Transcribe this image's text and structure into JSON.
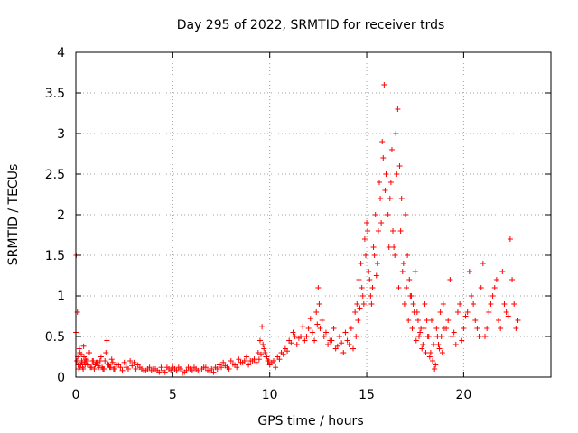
{
  "chart_data": {
    "type": "scatter",
    "title": "Day 295 of 2022, SRMTID for receiver trds",
    "xlabel": "GPS time / hours",
    "ylabel": "SRMTID / TECUs",
    "xlim": [
      0,
      24.5
    ],
    "ylim": [
      0,
      4
    ],
    "xticks": [
      0,
      5,
      10,
      15,
      20
    ],
    "yticks": [
      0,
      0.5,
      1,
      1.5,
      2,
      2.5,
      3,
      3.5,
      4
    ],
    "xtick_labels": [
      "0",
      "5",
      "10",
      "15",
      "20"
    ],
    "ytick_labels": [
      "0",
      "0.5",
      "1",
      "1.5",
      "2",
      "2.5",
      "3",
      "3.5",
      "4"
    ],
    "grid": true,
    "marker": "+",
    "color": "#ff0000",
    "series": [
      {
        "name": "trds",
        "x": [
          0.0,
          0.05,
          0.1,
          0.15,
          0.2,
          0.25,
          0.3,
          0.35,
          0.4,
          0.45,
          0.5,
          0.6,
          0.7,
          0.8,
          0.9,
          1.0,
          1.1,
          1.2,
          1.3,
          1.4,
          1.5,
          1.6,
          1.7,
          1.8,
          1.9,
          2.0,
          2.2,
          2.4,
          2.6,
          2.8,
          3.0,
          3.2,
          3.4,
          3.6,
          3.8,
          4.0,
          4.2,
          4.4,
          4.6,
          4.8,
          5.0,
          5.2,
          5.4,
          5.6,
          5.8,
          6.0,
          6.2,
          6.4,
          6.6,
          6.8,
          7.0,
          7.2,
          7.4,
          7.6,
          7.8,
          8.0,
          8.2,
          8.4,
          8.6,
          8.8,
          9.0,
          9.2,
          9.4,
          9.5,
          9.6,
          9.7,
          9.8,
          9.9,
          10.0,
          10.2,
          10.4,
          10.6,
          10.8,
          11.0,
          11.2,
          11.4,
          11.6,
          11.8,
          12.0,
          12.2,
          12.4,
          12.5,
          12.6,
          12.8,
          13.0,
          13.2,
          13.4,
          13.6,
          13.8,
          14.0,
          14.2,
          14.4,
          14.5,
          14.6,
          14.7,
          14.8,
          14.9,
          15.0,
          15.1,
          15.2,
          15.3,
          15.4,
          15.5,
          15.6,
          15.7,
          15.8,
          15.9,
          16.0,
          16.1,
          16.2,
          16.3,
          16.4,
          16.5,
          16.6,
          16.7,
          16.8,
          16.9,
          17.0,
          17.1,
          17.2,
          17.3,
          17.4,
          17.5,
          17.6,
          17.7,
          17.8,
          17.9,
          18.0,
          18.1,
          18.2,
          18.3,
          18.4,
          18.5,
          18.6,
          18.7,
          18.8,
          18.9,
          19.0,
          19.2,
          19.4,
          19.6,
          19.8,
          20.0,
          20.2,
          20.4,
          20.6,
          20.8,
          21.0,
          21.2,
          21.4,
          21.6,
          21.8,
          22.0,
          22.2,
          22.4,
          22.6,
          22.8,
          0.02,
          0.08,
          0.12,
          0.18,
          0.22,
          0.28,
          0.32,
          0.38,
          0.42,
          0.48,
          0.55,
          0.65,
          0.75,
          0.85,
          0.95,
          1.05,
          1.15,
          1.25,
          1.35,
          1.45,
          1.55,
          1.65,
          1.75,
          1.85,
          1.95,
          2.1,
          2.3,
          2.5,
          2.7,
          2.9,
          3.1,
          3.3,
          3.5,
          3.7,
          3.9,
          4.1,
          4.3,
          4.5,
          4.7,
          4.9,
          5.1,
          5.3,
          5.5,
          5.7,
          5.9,
          6.1,
          6.3,
          6.5,
          6.7,
          6.9,
          7.1,
          7.3,
          7.5,
          7.7,
          7.9,
          8.1,
          8.3,
          8.5,
          8.7,
          8.9,
          9.1,
          9.3,
          9.45,
          9.55,
          9.65,
          9.75,
          9.85,
          9.95,
          10.1,
          10.3,
          10.5,
          10.7,
          10.9,
          11.1,
          11.3,
          11.5,
          11.7,
          11.9,
          12.1,
          12.3,
          12.45,
          12.55,
          12.7,
          12.9,
          13.1,
          13.3,
          13.5,
          13.7,
          13.9,
          14.1,
          14.3,
          14.45,
          14.55,
          14.65,
          14.75,
          14.85,
          14.95,
          15.05,
          15.15,
          15.25,
          15.35,
          15.45,
          15.55,
          15.65,
          15.75,
          15.85,
          15.95,
          16.05,
          16.15,
          16.25,
          16.35,
          16.45,
          16.55,
          16.65,
          16.75,
          16.85,
          16.95,
          17.05,
          17.15,
          17.25,
          17.35,
          17.45,
          17.55,
          17.65,
          17.75,
          17.85,
          17.95,
          18.05,
          18.15,
          18.25,
          18.35,
          18.45,
          18.55,
          18.65,
          18.75,
          18.85,
          18.95,
          19.1,
          19.3,
          19.5,
          19.7,
          19.9,
          20.1,
          20.3,
          20.5,
          20.7,
          20.9,
          21.1,
          21.3,
          21.5,
          21.7,
          21.9,
          22.1,
          22.3,
          22.5,
          22.7
        ],
        "y": [
          0.55,
          0.2,
          0.25,
          0.1,
          0.3,
          0.15,
          0.2,
          0.12,
          0.38,
          0.18,
          0.22,
          0.15,
          0.3,
          0.12,
          0.2,
          0.15,
          0.18,
          0.12,
          0.25,
          0.1,
          0.2,
          0.45,
          0.15,
          0.12,
          0.18,
          0.1,
          0.15,
          0.08,
          0.12,
          0.2,
          0.18,
          0.15,
          0.1,
          0.08,
          0.12,
          0.1,
          0.08,
          0.12,
          0.06,
          0.1,
          0.12,
          0.08,
          0.1,
          0.06,
          0.12,
          0.08,
          0.1,
          0.05,
          0.12,
          0.08,
          0.1,
          0.12,
          0.15,
          0.18,
          0.12,
          0.2,
          0.15,
          0.22,
          0.18,
          0.25,
          0.2,
          0.22,
          0.3,
          0.45,
          0.62,
          0.35,
          0.25,
          0.2,
          0.15,
          0.2,
          0.25,
          0.3,
          0.35,
          0.45,
          0.55,
          0.4,
          0.5,
          0.45,
          0.6,
          0.55,
          0.8,
          1.1,
          0.6,
          0.5,
          0.4,
          0.45,
          0.35,
          0.5,
          0.3,
          0.45,
          0.6,
          0.8,
          0.9,
          1.2,
          1.4,
          1.0,
          1.7,
          1.9,
          1.3,
          1.0,
          1.1,
          1.5,
          1.25,
          1.8,
          2.2,
          2.9,
          3.6,
          2.5,
          2.0,
          2.2,
          2.8,
          1.6,
          3.0,
          3.3,
          2.6,
          2.2,
          1.4,
          2.0,
          1.5,
          1.2,
          1.0,
          0.9,
          1.3,
          0.8,
          0.5,
          0.6,
          0.4,
          0.9,
          0.7,
          0.5,
          0.3,
          0.2,
          0.1,
          0.6,
          0.4,
          0.8,
          0.3,
          0.6,
          0.7,
          0.5,
          0.4,
          0.9,
          0.6,
          0.8,
          1.0,
          0.7,
          0.5,
          1.4,
          0.6,
          0.9,
          1.1,
          0.7,
          1.3,
          0.8,
          1.7,
          0.9,
          0.7,
          1.5,
          0.8,
          0.15,
          0.35,
          0.12,
          0.28,
          0.18,
          0.1,
          0.25,
          0.15,
          0.2,
          0.3,
          0.12,
          0.2,
          0.1,
          0.18,
          0.14,
          0.2,
          0.12,
          0.1,
          0.3,
          0.16,
          0.12,
          0.22,
          0.1,
          0.15,
          0.12,
          0.18,
          0.1,
          0.14,
          0.1,
          0.12,
          0.08,
          0.1,
          0.08,
          0.1,
          0.06,
          0.08,
          0.12,
          0.08,
          0.1,
          0.12,
          0.05,
          0.08,
          0.1,
          0.12,
          0.08,
          0.1,
          0.12,
          0.08,
          0.06,
          0.1,
          0.12,
          0.14,
          0.1,
          0.16,
          0.12,
          0.18,
          0.2,
          0.15,
          0.2,
          0.18,
          0.22,
          0.28,
          0.4,
          0.3,
          0.25,
          0.2,
          0.18,
          0.12,
          0.22,
          0.28,
          0.32,
          0.42,
          0.5,
          0.48,
          0.62,
          0.5,
          0.72,
          0.45,
          0.65,
          0.9,
          0.7,
          0.55,
          0.45,
          0.6,
          0.38,
          0.42,
          0.55,
          0.4,
          0.35,
          0.5,
          0.7,
          0.85,
          1.1,
          0.9,
          1.5,
          1.8,
          1.2,
          0.9,
          1.6,
          2.0,
          1.4,
          2.4,
          1.9,
          2.7,
          2.3,
          2.0,
          1.6,
          2.4,
          1.8,
          1.5,
          2.5,
          1.1,
          1.8,
          1.3,
          0.9,
          1.1,
          0.7,
          1.0,
          0.6,
          0.8,
          0.45,
          0.7,
          0.55,
          0.35,
          0.6,
          0.3,
          0.5,
          0.25,
          0.7,
          0.4,
          0.15,
          0.5,
          0.35,
          0.5,
          0.9,
          0.6,
          1.2,
          0.55,
          0.8,
          0.45,
          0.75,
          1.3,
          0.9,
          0.6,
          1.1,
          0.5,
          0.8,
          1.0,
          1.2,
          0.6,
          0.9,
          0.75,
          1.2,
          0.6
        ]
      }
    ]
  }
}
